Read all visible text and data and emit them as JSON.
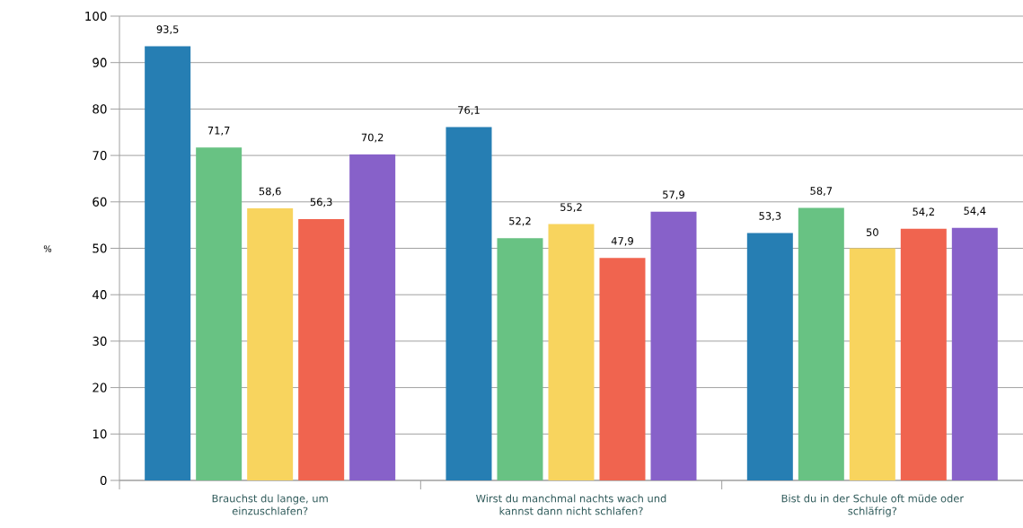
{
  "chart_data": {
    "type": "bar",
    "ylabel": "%",
    "categories": [
      "Brauchst du lange, um einzuschlafen?",
      "Wirst du manchmal nachts wach und kannst dann nicht schlafen?",
      "Bist du in der Schule oft müde oder schläfrig?"
    ],
    "series": [
      {
        "color": "#267eb3",
        "values": [
          93.5,
          76.1,
          53.3
        ],
        "value_labels": [
          "93,5",
          "76,1",
          "53,3"
        ]
      },
      {
        "color": "#68c283",
        "values": [
          71.7,
          52.2,
          58.7
        ],
        "value_labels": [
          "71,7",
          "52,2",
          "58,7"
        ]
      },
      {
        "color": "#f8d45e",
        "values": [
          58.6,
          55.2,
          50
        ],
        "value_labels": [
          "58,6",
          "55,2",
          "50"
        ]
      },
      {
        "color": "#f0644f",
        "values": [
          56.3,
          47.9,
          54.2
        ],
        "value_labels": [
          "56,3",
          "47,9",
          "54,2"
        ]
      },
      {
        "color": "#8761c9",
        "values": [
          70.2,
          57.9,
          54.4
        ],
        "value_labels": [
          "70,2",
          "57,9",
          "54,4"
        ]
      }
    ],
    "ylim": [
      0,
      100
    ],
    "yticks": [
      0,
      10,
      20,
      30,
      40,
      50,
      60,
      70,
      80,
      90,
      100
    ],
    "grid": "y"
  }
}
